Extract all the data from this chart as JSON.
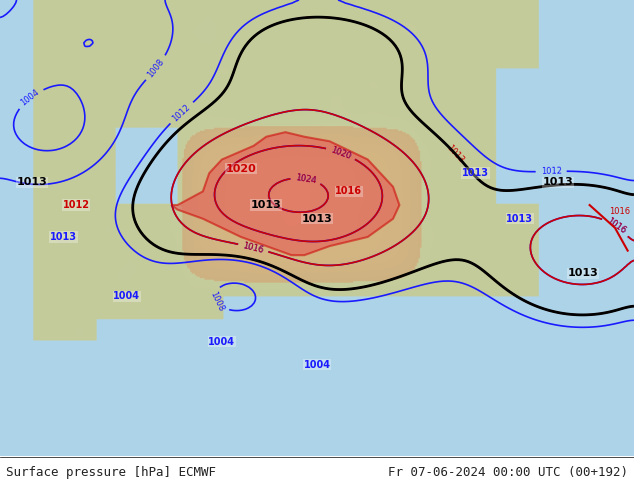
{
  "title_left": "Surface pressure [hPa] ECMWF",
  "title_right": "Fr 07-06-2024 00:00 UTC (00+192)",
  "title_fontsize": 9,
  "title_color": "#222222",
  "bg_color": "#ffffff",
  "map_bg": "#add8e6",
  "land_color": "#d4c9a0",
  "figsize": [
    6.34,
    4.9
  ],
  "dpi": 100
}
